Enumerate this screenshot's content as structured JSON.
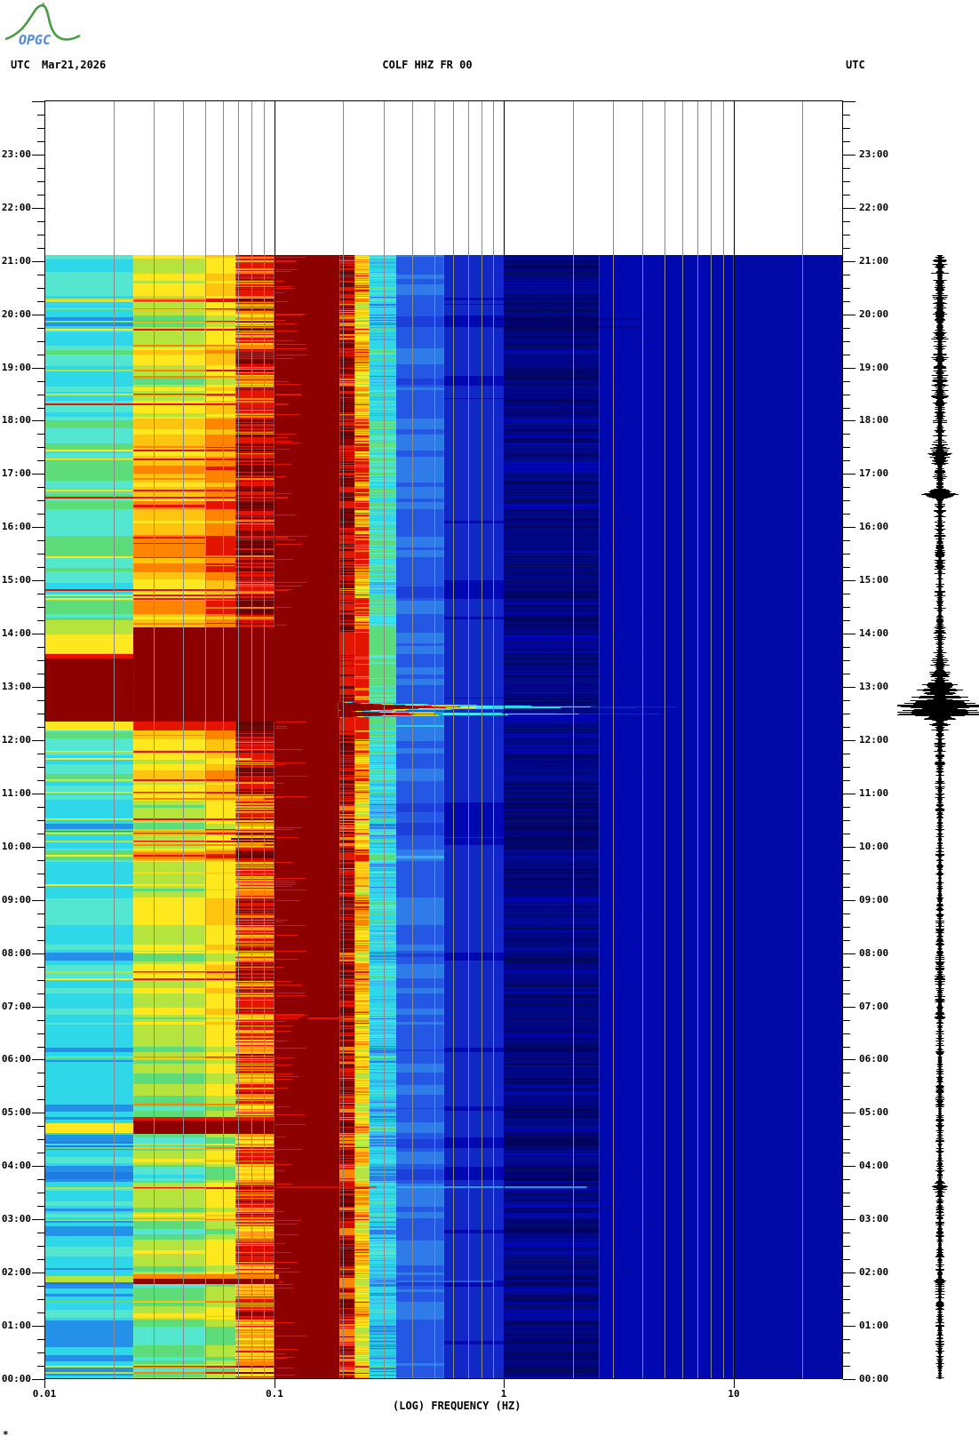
{
  "header": {
    "logo_text": "OPGC",
    "left_label": "UTC",
    "date": "Mar21,2026",
    "title": "COLF HHZ FR 00",
    "right_label": "UTC"
  },
  "footnote": "*",
  "plot": {
    "frame_color": "#000000",
    "grid_color": "#8a8a8a",
    "x": {
      "label": "(LOG) FREQUENCY (HZ)",
      "tick_labels": [
        {
          "text": "0.01",
          "hz": 0.01
        },
        {
          "text": "0.1",
          "hz": 0.1
        },
        {
          "text": "1",
          "hz": 1
        },
        {
          "text": "10",
          "hz": 10
        }
      ]
    },
    "y": {
      "hour_labels": [
        "00:00",
        "01:00",
        "02:00",
        "03:00",
        "04:00",
        "05:00",
        "06:00",
        "07:00",
        "08:00",
        "09:00",
        "10:00",
        "11:00",
        "12:00",
        "13:00",
        "14:00",
        "15:00",
        "16:00",
        "17:00",
        "18:00",
        "19:00",
        "20:00",
        "21:00",
        "22:00",
        "23:00"
      ],
      "minor_per_hour": 4
    }
  },
  "chart_data": {
    "type": "heatmap",
    "title": "COLF HHZ FR 00",
    "x_axis": {
      "label": "(LOG) FREQUENCY (HZ)",
      "scale": "log10",
      "min_hz": 0.01,
      "max_hz": 30,
      "labeled_ticks_hz": [
        0.01,
        0.1,
        1,
        10
      ],
      "major_gridlines_hz": [
        0.1,
        1,
        10
      ],
      "minor_gridlines_hz": [
        0.02,
        0.03,
        0.04,
        0.05,
        0.06,
        0.07,
        0.08,
        0.09,
        0.2,
        0.3,
        0.4,
        0.5,
        0.6,
        0.7,
        0.8,
        0.9,
        2,
        3,
        4,
        5,
        6,
        7,
        8,
        9,
        20
      ]
    },
    "y_axis": {
      "unit": "UTC hours, 00:00 bottom to 24:00 top",
      "bottom_hour": 0,
      "top_hour": 24,
      "data_start_hour": 21.12
    },
    "palette": {
      "maroon": "#8c0000",
      "dark_maroon": "#630000",
      "red": "#e31400",
      "orange": "#ff8400",
      "amber": "#ffc410",
      "yellow": "#ffe91e",
      "green_yellow": "#b5e43e",
      "green": "#5fdc7a",
      "light_cyan": "#55e6cf",
      "cyan": "#2fd8e8",
      "cyan_blue": "#35b4ec",
      "sky_blue": "#2f7ce8",
      "blue_stripe": "#2590e8",
      "deep_blue": "#1f7ce2",
      "bright_blue": "#2458e4",
      "medium_blue": "#1b3fd8",
      "royal": "#1228c4",
      "navy": "#0008b0",
      "navy2": "#0008a6",
      "darker_navy": "#000784",
      "deep_navy": "#00045e",
      "dim_blue": "#1e46d2"
    },
    "freq_bands": [
      {
        "f0": 0.01,
        "f1": 0.0244,
        "mood": "low",
        "noise": 0.5,
        "ramp": [
          "deep_blue",
          "blue_stripe",
          "cyan",
          "light_cyan",
          "green",
          "green_yellow",
          "yellow"
        ]
      },
      {
        "f0": 0.0244,
        "f1": 0.05,
        "mood": "mid",
        "noise": 0.55,
        "ramp": [
          "cyan",
          "light_cyan",
          "green",
          "green_yellow",
          "yellow",
          "amber",
          "orange",
          "red"
        ]
      },
      {
        "f0": 0.05,
        "f1": 0.068,
        "mood": "mid",
        "noise": 0.5,
        "ramp": [
          "light_cyan",
          "green",
          "green_yellow",
          "yellow",
          "amber",
          "orange",
          "red",
          "red"
        ]
      },
      {
        "f0": 0.068,
        "f1": 0.1,
        "mood": "mid",
        "noise": 0.8,
        "jagged": true,
        "ramp": [
          "yellow",
          "amber",
          "orange",
          "red",
          "red",
          "maroon",
          "dark_maroon"
        ]
      },
      {
        "f0": 0.1,
        "f1": 0.193,
        "solid": "maroon"
      },
      {
        "f0": 0.193,
        "f1": 0.225,
        "mood": "mid",
        "noise": 1.0,
        "jagged": true,
        "ramp": [
          "orange",
          "red",
          "maroon",
          "dark_maroon",
          "red"
        ]
      },
      {
        "f0": 0.225,
        "f1": 0.26,
        "mood": "mid",
        "noise": 1.0,
        "jagged": true,
        "ramp": [
          "green_yellow",
          "yellow",
          "amber",
          "orange",
          "red"
        ]
      },
      {
        "f0": 0.26,
        "f1": 0.34,
        "mood": "mid",
        "noise": 0.8,
        "jagged": true,
        "ramp": [
          "sky_blue",
          "cyan_blue",
          "cyan",
          "cyan",
          "light_cyan",
          "green"
        ]
      },
      {
        "f0": 0.34,
        "f1": 0.55,
        "mood": "blue",
        "noise": 0.7,
        "ramp": [
          "medium_blue",
          "bright_blue",
          "sky_blue",
          "cyan_blue"
        ]
      },
      {
        "f0": 0.55,
        "f1": 1.0,
        "mood": "blue",
        "noise": 0.5,
        "ramp": [
          "navy",
          "royal",
          "medium_blue"
        ]
      },
      {
        "f0": 1.0,
        "f1": 2.6,
        "mood": "blue",
        "noise": 0.6,
        "jagged": true,
        "ramp": [
          "deep_navy",
          "darker_navy",
          "navy"
        ]
      },
      {
        "f0": 2.6,
        "f1": 10.0,
        "mood": "blue",
        "noise": 0.3,
        "ramp": [
          "navy",
          "navy",
          "navy2"
        ]
      },
      {
        "f0": 10.0,
        "f1": 30.0,
        "mood": "blue",
        "noise": 0.2,
        "ramp": [
          "navy2",
          "navy2",
          "navy"
        ]
      }
    ],
    "time_moods": {
      "low": [
        [
          0,
          2,
          0.3
        ],
        [
          2,
          6,
          0.33
        ],
        [
          6,
          9.5,
          0.4
        ],
        [
          9.5,
          12.2,
          0.48
        ],
        [
          12.2,
          13.53,
          0.9
        ],
        [
          13.53,
          14.3,
          0.85
        ],
        [
          14.3,
          16.5,
          0.58
        ],
        [
          16.5,
          18.5,
          0.52
        ],
        [
          18.5,
          21.2,
          0.48
        ]
      ],
      "mid": [
        [
          0,
          2,
          0.32
        ],
        [
          2,
          6,
          0.36
        ],
        [
          6,
          9.5,
          0.48
        ],
        [
          9.5,
          12.2,
          0.58
        ],
        [
          12.2,
          14.12,
          0.95
        ],
        [
          14.12,
          16.5,
          0.78
        ],
        [
          16.5,
          18.5,
          0.62
        ],
        [
          18.5,
          21.2,
          0.52
        ]
      ],
      "blue": [
        [
          0,
          21.2,
          0.46
        ]
      ]
    },
    "maroon_edge_dashes": {
      "prob": 0.1,
      "hz0": 0.1,
      "hz1": 0.13,
      "color": "red"
    },
    "events": [
      {
        "name": "microseism-saturation-mid",
        "t0": 12.35,
        "t1": 14.12,
        "hz0": 0.0244,
        "hz1": 0.193,
        "color": "maroon"
      },
      {
        "name": "microseism-saturation-low",
        "t0": 12.35,
        "t1": 13.53,
        "hz0": 0.01,
        "hz1": 0.0244,
        "color": "maroon"
      },
      {
        "name": "red-edge-low",
        "t0": 13.53,
        "t1": 13.62,
        "hz0": 0.01,
        "hz1": 0.0244,
        "color": "red"
      },
      {
        "name": "band-0445-maroon",
        "t0": 4.6,
        "t1": 4.85,
        "hz0": 0.0244,
        "hz1": 0.1,
        "color": "maroon"
      },
      {
        "name": "band-0445-red-edge",
        "t0": 4.85,
        "t1": 4.92,
        "hz0": 0.0244,
        "hz1": 0.1,
        "color": "red"
      },
      {
        "name": "band-0445-left-yellow",
        "t0": 4.62,
        "t1": 4.8,
        "hz0": 0.01,
        "hz1": 0.0244,
        "color": "yellow"
      },
      {
        "name": "band-0150-maroon",
        "t0": 1.78,
        "t1": 1.88,
        "hz0": 0.0244,
        "hz1": 0.105,
        "color": "maroon"
      },
      {
        "name": "band-0150-orange",
        "t0": 1.88,
        "t1": 1.97,
        "hz0": 0.0244,
        "hz1": 0.105,
        "color": "orange"
      },
      {
        "name": "band-0150-left-green",
        "t0": 1.82,
        "t1": 1.93,
        "hz0": 0.01,
        "hz1": 0.0244,
        "color": "green_yellow"
      }
    ],
    "tongues": [
      {
        "t": 12.63,
        "half_h": 0.1,
        "tips_hz": {
          "dim_blue": 7.0,
          "cyan": 2.8,
          "yellow": 1.0,
          "red": 0.7,
          "maroon": 0.55
        }
      },
      {
        "t": 12.5,
        "half_h": 0.07,
        "tips_hz": {
          "dim_blue": 5.0,
          "cyan": 2.2,
          "yellow": 0.8,
          "red": 0.55,
          "maroon": 0.42
        }
      }
    ],
    "h_lines": [
      {
        "t": 19.42,
        "hz0": 0.0244,
        "hz1": 0.1,
        "color": "orange"
      },
      {
        "t": 18.85,
        "hz0": 0.0244,
        "hz1": 0.1,
        "color": "orange"
      },
      {
        "t": 18.32,
        "hz0": 0.01,
        "hz1": 0.115,
        "color": "red"
      },
      {
        "t": 16.92,
        "hz0": 0.0244,
        "hz1": 0.1,
        "color": "orange"
      },
      {
        "t": 16.58,
        "hz0": 0.01,
        "hz1": 0.115,
        "color": "red"
      },
      {
        "t": 15.83,
        "hz0": 0.0244,
        "hz1": 0.115,
        "color": "red"
      },
      {
        "t": 15.47,
        "hz0": 0.0244,
        "hz1": 0.1,
        "color": "orange"
      },
      {
        "t": 14.83,
        "hz0": 0.01,
        "hz1": 0.115,
        "color": "red"
      },
      {
        "t": 14.5,
        "hz0": 0.0244,
        "hz1": 0.1,
        "color": "orange"
      },
      {
        "t": 11.67,
        "hz0": 0.01,
        "hz1": 0.08,
        "color": "yellow"
      },
      {
        "t": 10.92,
        "hz0": 0.0244,
        "hz1": 0.09,
        "color": "orange"
      },
      {
        "t": 10.17,
        "hz0": 0.065,
        "hz1": 0.1,
        "color": "dark_maroon"
      },
      {
        "t": 10.05,
        "hz0": 0.0244,
        "hz1": 0.09,
        "color": "orange"
      },
      {
        "t": 9.3,
        "hz0": 0.01,
        "hz1": 0.07,
        "color": "yellow"
      },
      {
        "t": 8.02,
        "hz0": 0.0244,
        "hz1": 0.07,
        "color": "yellow"
      },
      {
        "t": 6.8,
        "hz0": 0.14,
        "hz1": 0.2,
        "color": "red"
      },
      {
        "t": 5.17,
        "hz0": 0.0244,
        "hz1": 0.1,
        "color": "orange"
      },
      {
        "t": 3.63,
        "hz0": 0.28,
        "hz1": 2.3,
        "color": "cyan_blue",
        "a": 0.8
      },
      {
        "t": 3.63,
        "hz0": 0.1,
        "hz1": 0.28,
        "color": "red",
        "a": 0.7
      },
      {
        "t": 1.85,
        "hz0": 0.28,
        "hz1": 0.9,
        "color": "sky_blue",
        "a": 0.7
      },
      {
        "t": 12.28,
        "hz0": 0.26,
        "hz1": 0.55,
        "color": "cyan",
        "a": 0.8
      },
      {
        "t": 19.93,
        "hz0": 0.9,
        "hz1": 4.0,
        "color": "deep_navy",
        "a": 0.5
      },
      {
        "t": 19.78,
        "hz0": 0.9,
        "hz1": 4.0,
        "color": "deep_navy",
        "a": 0.5
      }
    ],
    "trace": {
      "color": "#000000",
      "profile": [
        [
          0,
          3
        ],
        [
          1.6,
          3
        ],
        [
          1.85,
          5
        ],
        [
          2.1,
          3
        ],
        [
          3.5,
          3
        ],
        [
          3.63,
          7
        ],
        [
          3.8,
          3
        ],
        [
          6.7,
          3
        ],
        [
          6.85,
          4
        ],
        [
          8,
          3
        ],
        [
          10.5,
          3
        ],
        [
          11.5,
          3.5
        ],
        [
          12.1,
          4
        ],
        [
          12.35,
          9
        ],
        [
          12.45,
          30
        ],
        [
          12.55,
          38
        ],
        [
          12.65,
          36
        ],
        [
          12.75,
          20
        ],
        [
          12.9,
          12
        ],
        [
          13.05,
          9
        ],
        [
          13.3,
          7
        ],
        [
          13.6,
          5
        ],
        [
          14.1,
          4
        ],
        [
          15,
          3.5
        ],
        [
          16.2,
          4
        ],
        [
          16.55,
          5
        ],
        [
          16.63,
          13
        ],
        [
          16.75,
          5
        ],
        [
          17.2,
          6
        ],
        [
          17.4,
          8
        ],
        [
          17.6,
          5
        ],
        [
          18.2,
          5
        ],
        [
          18.6,
          6
        ],
        [
          19.1,
          6
        ],
        [
          19.5,
          5.5
        ],
        [
          19.9,
          6.5
        ],
        [
          20.3,
          5.5
        ],
        [
          20.8,
          6
        ],
        [
          21.12,
          5
        ]
      ],
      "spikes": [
        [
          12.5,
          46
        ],
        [
          12.57,
          42
        ],
        [
          12.63,
          44
        ],
        [
          12.7,
          40
        ],
        [
          12.82,
          32
        ],
        [
          12.95,
          26
        ],
        [
          13.05,
          20
        ],
        [
          16.63,
          21
        ],
        [
          17.38,
          12
        ],
        [
          3.63,
          9
        ],
        [
          1.85,
          7
        ],
        [
          6.8,
          6
        ],
        [
          12.3,
          12
        ]
      ]
    }
  }
}
